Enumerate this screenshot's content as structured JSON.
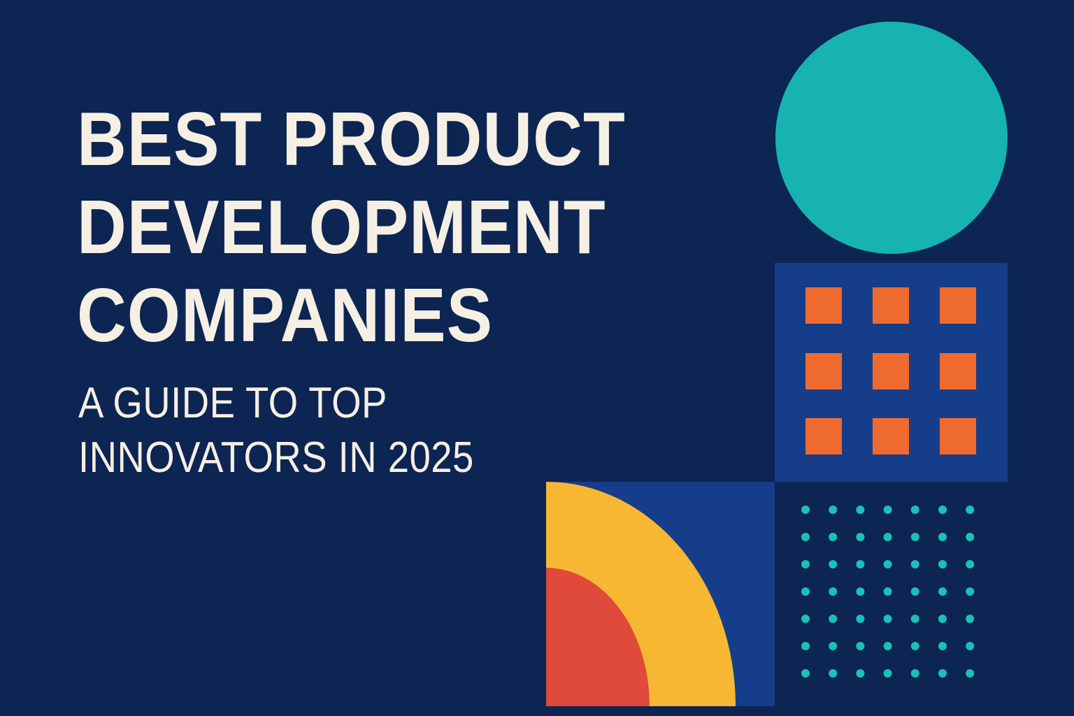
{
  "heading": {
    "lines": [
      "BEST PRODUCT",
      "DEVELOPMENT",
      "COMPANIES"
    ]
  },
  "subheading": {
    "lines": [
      "A GUIDE TO TOP",
      "INNOVATORS IN 2025"
    ]
  },
  "colors": {
    "background": "#0c2553",
    "text": "#f6efe4",
    "teal": "#17b3b3",
    "panel_blue": "#163d8a",
    "orange": "#ee6a2f",
    "yellow": "#f7b733",
    "red": "#e04a3a",
    "dot_teal": "#1cc0b8"
  },
  "icons": [
    "teal-circle-shape",
    "orange-square-grid",
    "quarter-arc-shape",
    "teal-dot-grid"
  ]
}
